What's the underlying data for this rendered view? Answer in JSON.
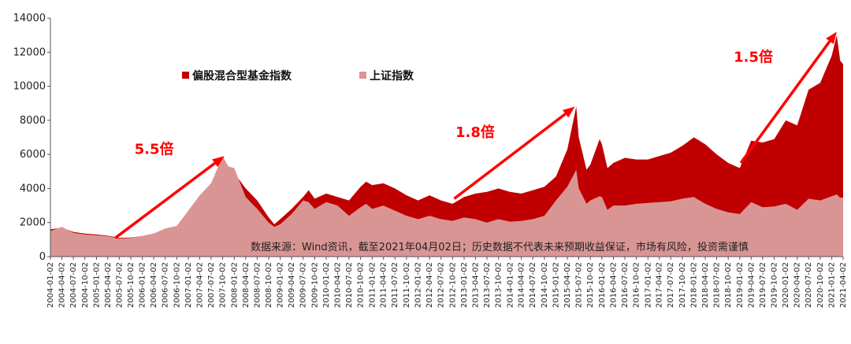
{
  "chart_data": {
    "type": "area",
    "ylim": [
      0,
      14000
    ],
    "yticks": [
      0,
      2000,
      4000,
      6000,
      8000,
      10000,
      12000,
      14000
    ],
    "xlim": [
      "2004-01-02",
      "2021-04-02"
    ],
    "x_tick_labels": [
      "2004-01-02",
      "2004-04-02",
      "2004-07-02",
      "2004-10-02",
      "2005-01-02",
      "2005-04-02",
      "2005-07-02",
      "2005-10-02",
      "2006-01-02",
      "2006-04-02",
      "2006-07-02",
      "2006-10-02",
      "2007-01-02",
      "2007-04-02",
      "2007-07-02",
      "2007-10-02",
      "2008-01-02",
      "2008-04-02",
      "2008-07-02",
      "2008-10-02",
      "2009-01-02",
      "2009-04-02",
      "2009-07-02",
      "2009-10-02",
      "2010-01-02",
      "2010-04-02",
      "2010-07-02",
      "2010-10-02",
      "2011-01-02",
      "2011-04-02",
      "2011-07-02",
      "2011-10-02",
      "2012-01-02",
      "2012-04-02",
      "2012-07-02",
      "2012-10-02",
      "2013-01-02",
      "2013-04-02",
      "2013-07-02",
      "2013-10-02",
      "2014-01-02",
      "2014-04-02",
      "2014-07-02",
      "2014-10-02",
      "2015-01-02",
      "2015-04-02",
      "2015-07-02",
      "2015-10-02",
      "2016-01-02",
      "2016-04-02",
      "2016-07-02",
      "2016-10-02",
      "2017-01-02",
      "2017-04-02",
      "2017-07-02",
      "2017-10-02",
      "2018-01-02",
      "2018-04-02",
      "2018-07-02",
      "2018-10-02",
      "2019-01-02",
      "2019-04-02",
      "2019-07-02",
      "2019-10-02",
      "2020-01-02",
      "2020-04-02",
      "2020-07-02",
      "2020-10-02",
      "2021-01-02",
      "2021-04-02"
    ],
    "grid": false,
    "legend_position": "top-center",
    "series": [
      {
        "name": "偏股混合型基金指数",
        "color": "#c00000",
        "points": [
          [
            "2004-01-02",
            1600
          ],
          [
            "2004-04-02",
            1700
          ],
          [
            "2004-07-02",
            1450
          ],
          [
            "2004-10-02",
            1350
          ],
          [
            "2005-01-02",
            1300
          ],
          [
            "2005-04-02",
            1230
          ],
          [
            "2005-07-02",
            1100
          ],
          [
            "2005-10-02",
            1120
          ],
          [
            "2006-01-02",
            1200
          ],
          [
            "2006-04-02",
            1350
          ],
          [
            "2006-07-02",
            1600
          ],
          [
            "2006-10-02",
            1700
          ],
          [
            "2007-01-02",
            2200
          ],
          [
            "2007-04-02",
            3400
          ],
          [
            "2007-07-02",
            4300
          ],
          [
            "2007-10-02",
            5400
          ],
          [
            "2007-11-15",
            5200
          ],
          [
            "2008-01-02",
            4900
          ],
          [
            "2008-04-02",
            4000
          ],
          [
            "2008-07-02",
            3300
          ],
          [
            "2008-10-02",
            2300
          ],
          [
            "2008-11-15",
            1900
          ],
          [
            "2009-01-02",
            2200
          ],
          [
            "2009-04-02",
            2800
          ],
          [
            "2009-07-02",
            3500
          ],
          [
            "2009-08-15",
            3900
          ],
          [
            "2009-10-02",
            3400
          ],
          [
            "2010-01-02",
            3700
          ],
          [
            "2010-04-02",
            3500
          ],
          [
            "2010-07-02",
            3300
          ],
          [
            "2010-10-02",
            4100
          ],
          [
            "2010-11-15",
            4400
          ],
          [
            "2011-01-02",
            4200
          ],
          [
            "2011-04-02",
            4300
          ],
          [
            "2011-07-02",
            4000
          ],
          [
            "2011-10-02",
            3600
          ],
          [
            "2012-01-02",
            3300
          ],
          [
            "2012-04-02",
            3600
          ],
          [
            "2012-07-02",
            3300
          ],
          [
            "2012-10-02",
            3100
          ],
          [
            "2013-01-02",
            3500
          ],
          [
            "2013-04-02",
            3700
          ],
          [
            "2013-07-02",
            3800
          ],
          [
            "2013-10-02",
            4000
          ],
          [
            "2014-01-02",
            3800
          ],
          [
            "2014-04-02",
            3700
          ],
          [
            "2014-07-02",
            3900
          ],
          [
            "2014-10-02",
            4100
          ],
          [
            "2015-01-02",
            4700
          ],
          [
            "2015-04-02",
            6300
          ],
          [
            "2015-06-12",
            8800
          ],
          [
            "2015-07-02",
            7000
          ],
          [
            "2015-09-02",
            5100
          ],
          [
            "2015-10-02",
            5400
          ],
          [
            "2015-12-15",
            6900
          ],
          [
            "2016-01-02",
            6600
          ],
          [
            "2016-02-15",
            5200
          ],
          [
            "2016-04-02",
            5500
          ],
          [
            "2016-07-02",
            5800
          ],
          [
            "2016-10-02",
            5700
          ],
          [
            "2017-01-02",
            5700
          ],
          [
            "2017-04-02",
            5900
          ],
          [
            "2017-07-02",
            6100
          ],
          [
            "2017-10-02",
            6500
          ],
          [
            "2018-01-02",
            7000
          ],
          [
            "2018-04-02",
            6600
          ],
          [
            "2018-07-02",
            6000
          ],
          [
            "2018-10-02",
            5500
          ],
          [
            "2019-01-02",
            5200
          ],
          [
            "2019-04-02",
            6800
          ],
          [
            "2019-07-02",
            6700
          ],
          [
            "2019-10-02",
            6900
          ],
          [
            "2020-01-02",
            8000
          ],
          [
            "2020-04-02",
            7700
          ],
          [
            "2020-07-02",
            9800
          ],
          [
            "2020-10-02",
            10200
          ],
          [
            "2021-01-02",
            11800
          ],
          [
            "2021-02-10",
            13000
          ],
          [
            "2021-03-10",
            11500
          ],
          [
            "2021-04-02",
            11300
          ]
        ]
      },
      {
        "name": "上证指数",
        "color": "#d99594",
        "points": [
          [
            "2004-01-02",
            1500
          ],
          [
            "2004-04-02",
            1750
          ],
          [
            "2004-07-02",
            1400
          ],
          [
            "2004-10-02",
            1300
          ],
          [
            "2005-01-02",
            1250
          ],
          [
            "2005-04-02",
            1200
          ],
          [
            "2005-07-02",
            1050
          ],
          [
            "2005-10-02",
            1100
          ],
          [
            "2006-01-02",
            1200
          ],
          [
            "2006-04-02",
            1350
          ],
          [
            "2006-07-02",
            1650
          ],
          [
            "2006-10-02",
            1800
          ],
          [
            "2007-01-02",
            2700
          ],
          [
            "2007-04-02",
            3600
          ],
          [
            "2007-07-02",
            4300
          ],
          [
            "2007-10-02",
            5900
          ],
          [
            "2007-11-15",
            5300
          ],
          [
            "2008-01-02",
            5200
          ],
          [
            "2008-04-02",
            3500
          ],
          [
            "2008-07-02",
            2800
          ],
          [
            "2008-10-02",
            2000
          ],
          [
            "2008-11-15",
            1750
          ],
          [
            "2009-01-02",
            1900
          ],
          [
            "2009-04-02",
            2500
          ],
          [
            "2009-07-02",
            3300
          ],
          [
            "2009-08-15",
            3200
          ],
          [
            "2009-10-02",
            2800
          ],
          [
            "2010-01-02",
            3200
          ],
          [
            "2010-04-02",
            3000
          ],
          [
            "2010-07-02",
            2400
          ],
          [
            "2010-10-02",
            2900
          ],
          [
            "2010-11-15",
            3100
          ],
          [
            "2011-01-02",
            2800
          ],
          [
            "2011-04-02",
            3000
          ],
          [
            "2011-07-02",
            2700
          ],
          [
            "2011-10-02",
            2400
          ],
          [
            "2012-01-02",
            2200
          ],
          [
            "2012-04-02",
            2400
          ],
          [
            "2012-07-02",
            2200
          ],
          [
            "2012-10-02",
            2100
          ],
          [
            "2013-01-02",
            2300
          ],
          [
            "2013-04-02",
            2200
          ],
          [
            "2013-07-02",
            2000
          ],
          [
            "2013-10-02",
            2200
          ],
          [
            "2014-01-02",
            2050
          ],
          [
            "2014-04-02",
            2100
          ],
          [
            "2014-07-02",
            2200
          ],
          [
            "2014-10-02",
            2400
          ],
          [
            "2015-01-02",
            3300
          ],
          [
            "2015-04-02",
            4100
          ],
          [
            "2015-06-12",
            5100
          ],
          [
            "2015-07-02",
            4000
          ],
          [
            "2015-09-02",
            3100
          ],
          [
            "2015-10-02",
            3300
          ],
          [
            "2015-12-15",
            3550
          ],
          [
            "2016-01-02",
            3500
          ],
          [
            "2016-02-15",
            2750
          ],
          [
            "2016-04-02",
            3000
          ],
          [
            "2016-07-02",
            3000
          ],
          [
            "2016-10-02",
            3100
          ],
          [
            "2017-01-02",
            3150
          ],
          [
            "2017-04-02",
            3200
          ],
          [
            "2017-07-02",
            3250
          ],
          [
            "2017-10-02",
            3400
          ],
          [
            "2018-01-02",
            3500
          ],
          [
            "2018-04-02",
            3100
          ],
          [
            "2018-07-02",
            2800
          ],
          [
            "2018-10-02",
            2600
          ],
          [
            "2019-01-02",
            2500
          ],
          [
            "2019-04-02",
            3200
          ],
          [
            "2019-07-02",
            2900
          ],
          [
            "2019-10-02",
            2950
          ],
          [
            "2020-01-02",
            3100
          ],
          [
            "2020-04-02",
            2750
          ],
          [
            "2020-07-02",
            3400
          ],
          [
            "2020-10-02",
            3300
          ],
          [
            "2021-01-02",
            3550
          ],
          [
            "2021-02-10",
            3650
          ],
          [
            "2021-03-10",
            3450
          ],
          [
            "2021-04-02",
            3480
          ]
        ]
      }
    ],
    "annotations": [
      {
        "text": "5.5倍",
        "color": "#ff0000",
        "arrow_from": [
          "2005-06-01",
          1100
        ],
        "arrow_to": [
          "2007-10-15",
          5900
        ]
      },
      {
        "text": "1.8倍",
        "color": "#ff0000",
        "arrow_from": [
          "2012-10-15",
          3400
        ],
        "arrow_to": [
          "2015-06-01",
          8800
        ]
      },
      {
        "text": "1.5倍",
        "color": "#ff0000",
        "arrow_from": [
          "2019-01-10",
          5500
        ],
        "arrow_to": [
          "2021-02-10",
          13200
        ]
      }
    ],
    "source_note": "数据来源：Wind资讯，截至2021年04月02日；历史数据不代表未来预期收益保证，市场有风险，投资需谨慎"
  }
}
